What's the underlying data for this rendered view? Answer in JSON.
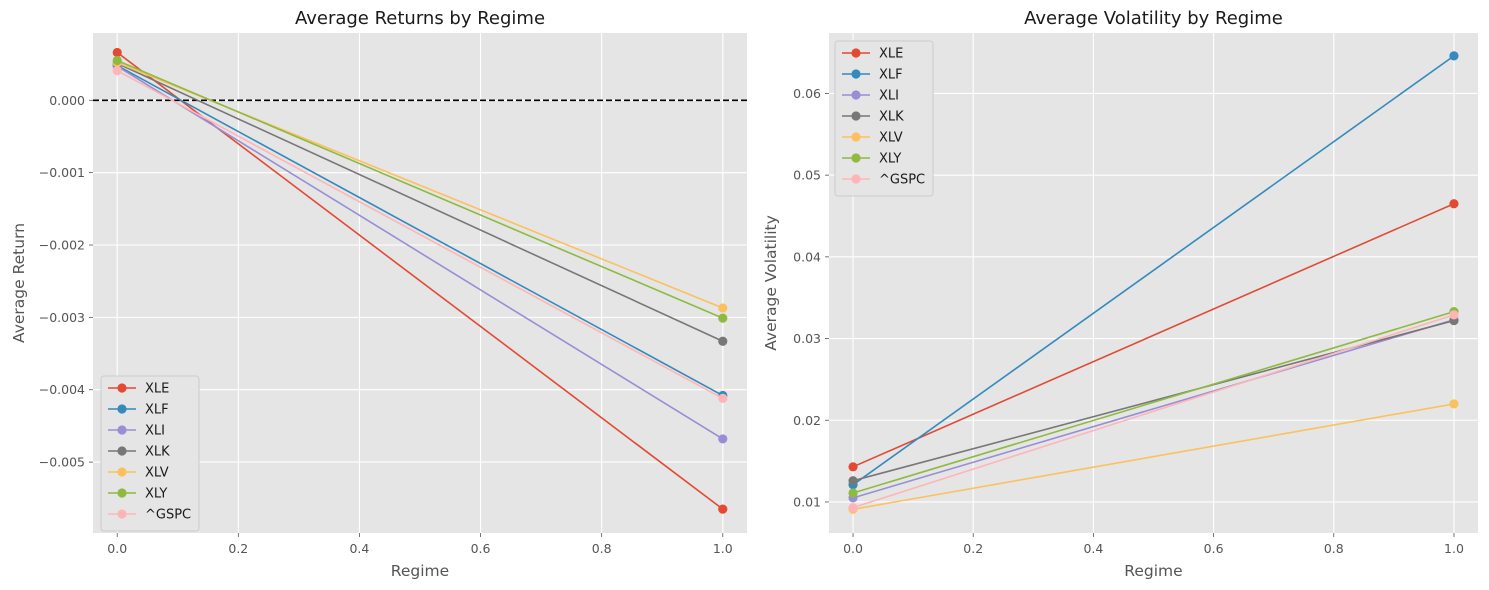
{
  "chart_data": [
    {
      "type": "line",
      "title": "Average Returns by Regime",
      "xlabel": "Regime",
      "ylabel": "Average Return",
      "xlim": [
        -0.04,
        1.04
      ],
      "ylim": [
        -0.00598,
        0.00093
      ],
      "x": [
        0.0,
        1.0
      ],
      "xticks": [
        0.0,
        0.2,
        0.4,
        0.6,
        0.8,
        1.0
      ],
      "xtick_labels": [
        "0.0",
        "0.2",
        "0.4",
        "0.6",
        "0.8",
        "1.0"
      ],
      "yticks": [
        0.0,
        -0.001,
        -0.002,
        -0.003,
        -0.004,
        -0.005
      ],
      "ytick_labels": [
        "0.000",
        "−0.001",
        "−0.002",
        "−0.003",
        "−0.004",
        "−0.005"
      ],
      "hline": {
        "y": 0.0,
        "style": "dashed",
        "color": "#000000"
      },
      "grid": true,
      "legend_position": "lower left",
      "series": [
        {
          "name": "XLE",
          "color": "#E24A33",
          "values": [
            0.00066,
            -0.00565
          ]
        },
        {
          "name": "XLF",
          "color": "#348ABD",
          "values": [
            0.00048,
            -0.00408
          ]
        },
        {
          "name": "XLI",
          "color": "#988ED5",
          "values": [
            0.00047,
            -0.00468
          ]
        },
        {
          "name": "XLK",
          "color": "#777777",
          "values": [
            0.00051,
            -0.00333
          ]
        },
        {
          "name": "XLV",
          "color": "#FBC15E",
          "values": [
            0.00052,
            -0.00287
          ]
        },
        {
          "name": "XLY",
          "color": "#8EBA42",
          "values": [
            0.00055,
            -0.00301
          ]
        },
        {
          "name": "^GSPC",
          "color": "#FFB5B8",
          "values": [
            0.00041,
            -0.00412
          ]
        }
      ]
    },
    {
      "type": "line",
      "title": "Average Volatility by Regime",
      "xlabel": "Regime",
      "ylabel": "Average Volatility",
      "xlim": [
        -0.04,
        1.04
      ],
      "ylim": [
        0.0062,
        0.0674
      ],
      "x": [
        0.0,
        1.0
      ],
      "xticks": [
        0.0,
        0.2,
        0.4,
        0.6,
        0.8,
        1.0
      ],
      "xtick_labels": [
        "0.0",
        "0.2",
        "0.4",
        "0.6",
        "0.8",
        "1.0"
      ],
      "yticks": [
        0.01,
        0.02,
        0.03,
        0.04,
        0.05,
        0.06
      ],
      "ytick_labels": [
        "0.01",
        "0.02",
        "0.03",
        "0.04",
        "0.05",
        "0.06"
      ],
      "grid": true,
      "legend_position": "upper left",
      "series": [
        {
          "name": "XLE",
          "color": "#E24A33",
          "values": [
            0.0143,
            0.0465
          ]
        },
        {
          "name": "XLF",
          "color": "#348ABD",
          "values": [
            0.0121,
            0.0646
          ]
        },
        {
          "name": "XLI",
          "color": "#988ED5",
          "values": [
            0.0105,
            0.0323
          ]
        },
        {
          "name": "XLK",
          "color": "#777777",
          "values": [
            0.0126,
            0.0322
          ]
        },
        {
          "name": "XLV",
          "color": "#FBC15E",
          "values": [
            0.0091,
            0.022
          ]
        },
        {
          "name": "XLY",
          "color": "#8EBA42",
          "values": [
            0.0111,
            0.0333
          ]
        },
        {
          "name": "^GSPC",
          "color": "#FFB5B8",
          "values": [
            0.0093,
            0.0329
          ]
        }
      ]
    }
  ]
}
